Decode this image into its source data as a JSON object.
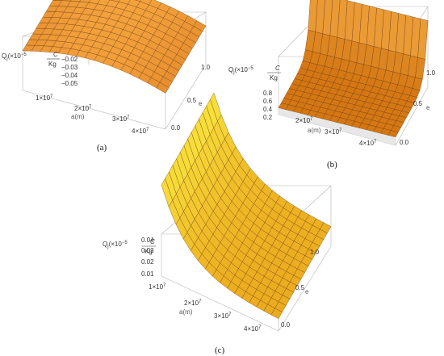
{
  "chart_data": [
    {
      "id": "a",
      "type": "surface",
      "caption": "(a)",
      "xlabel": "a(m)",
      "ylabel": "e",
      "zlabel": {
        "main": "Q",
        "sub": "j",
        "unit_prefix": "(×10",
        "exp": "−5",
        "num": "C",
        "den": "Kg"
      },
      "x_ticks": [
        {
          "mant": "1×10",
          "exp": "7"
        },
        {
          "mant": "2×10",
          "exp": "7"
        },
        {
          "mant": "3×10",
          "exp": "7"
        },
        {
          "mant": "4×10",
          "exp": "7"
        }
      ],
      "y_ticks": [
        "0.0",
        "0.5",
        "1.0"
      ],
      "z_ticks": [
        "−0.02",
        "−0.03",
        "−0.04",
        "−0.05"
      ],
      "z_range": [
        -0.055,
        -0.015
      ],
      "color_low": "#c8600e",
      "color_high": "#f6a640",
      "shape": "dome"
    },
    {
      "id": "b",
      "type": "surface",
      "caption": "(b)",
      "xlabel": "a(m)",
      "ylabel": "e",
      "zlabel": {
        "main": "Q",
        "sub": "j",
        "unit_prefix": "(×10",
        "exp": "−5",
        "num": "C",
        "den": "Kg"
      },
      "x_ticks": [
        {
          "mant": "2×10",
          "exp": "7"
        },
        {
          "mant": "3×10",
          "exp": "7"
        },
        {
          "mant": "4×10",
          "exp": "7"
        }
      ],
      "y_ticks": [
        "0.0",
        "0.5",
        "1.0"
      ],
      "z_ticks": [
        "0.8",
        "0.6",
        "0.4",
        "0.2"
      ],
      "z_range": [
        0.0,
        0.9
      ],
      "color_low": "#d0700c",
      "color_high": "#f7b04a",
      "shape": "edge-peak"
    },
    {
      "id": "c",
      "type": "surface",
      "caption": "(c)",
      "xlabel": "a(m)",
      "ylabel": "e",
      "zlabel": {
        "main": "Q",
        "sub": "j",
        "unit_prefix": "(×10",
        "exp": "−5",
        "num": "C",
        "den": "Kg"
      },
      "x_ticks": [
        {
          "mant": "1×10",
          "exp": "7"
        },
        {
          "mant": "2×10",
          "exp": "7"
        },
        {
          "mant": "3×10",
          "exp": "7"
        },
        {
          "mant": "4×10",
          "exp": "7"
        }
      ],
      "y_ticks": [
        "0.0",
        "0.5",
        "1.0"
      ],
      "z_ticks": [
        "0.04",
        "0.03",
        "0.02",
        "0.01"
      ],
      "z_range": [
        0.0,
        0.05
      ],
      "color_low": "#e9a21a",
      "color_high": "#f8e23c",
      "shape": "decay"
    }
  ]
}
